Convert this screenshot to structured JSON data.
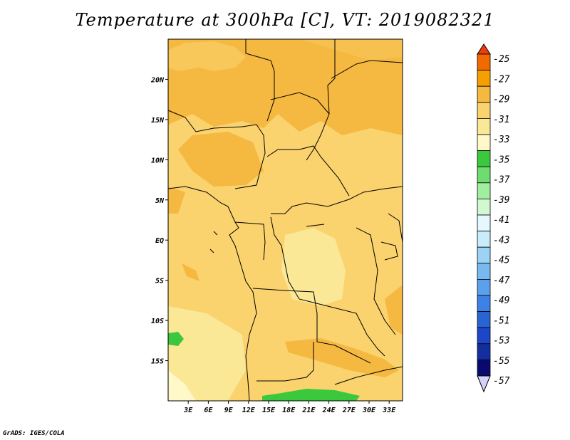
{
  "title": "Temperature at 300hPa [C], VT: 2019082321",
  "credit": "GrADS: IGES/COLA",
  "map": {
    "lon_range": [
      0,
      35
    ],
    "lat_range": [
      -20,
      25
    ],
    "lon_ticks": [
      "3E",
      "6E",
      "9E",
      "12E",
      "15E",
      "18E",
      "21E",
      "24E",
      "27E",
      "30E",
      "33E"
    ],
    "lat_ticks": [
      "20N",
      "15N",
      "10N",
      "5N",
      "EQ",
      "5S",
      "10S",
      "15S"
    ]
  },
  "colorbar": {
    "labels": [
      "-25",
      "-27",
      "-29",
      "-31",
      "-33",
      "-35",
      "-37",
      "-39",
      "-41",
      "-43",
      "-45",
      "-47",
      "-49",
      "-51",
      "-53",
      "-55",
      "-57"
    ],
    "colors": [
      "#f03c0a",
      "#f06a00",
      "#f5a000",
      "#f5b840",
      "#fad26e",
      "#fae896",
      "#fff8c8",
      "#3cc83c",
      "#6edc6e",
      "#a0eea0",
      "#d2f8d2",
      "#e6f8ff",
      "#c8ecfa",
      "#9bd2f5",
      "#78baf0",
      "#5aa0eb",
      "#3c82e6",
      "#2864d2",
      "#1e46c8",
      "#142ea0",
      "#0a0a6e",
      "#d2d2fa"
    ]
  }
}
